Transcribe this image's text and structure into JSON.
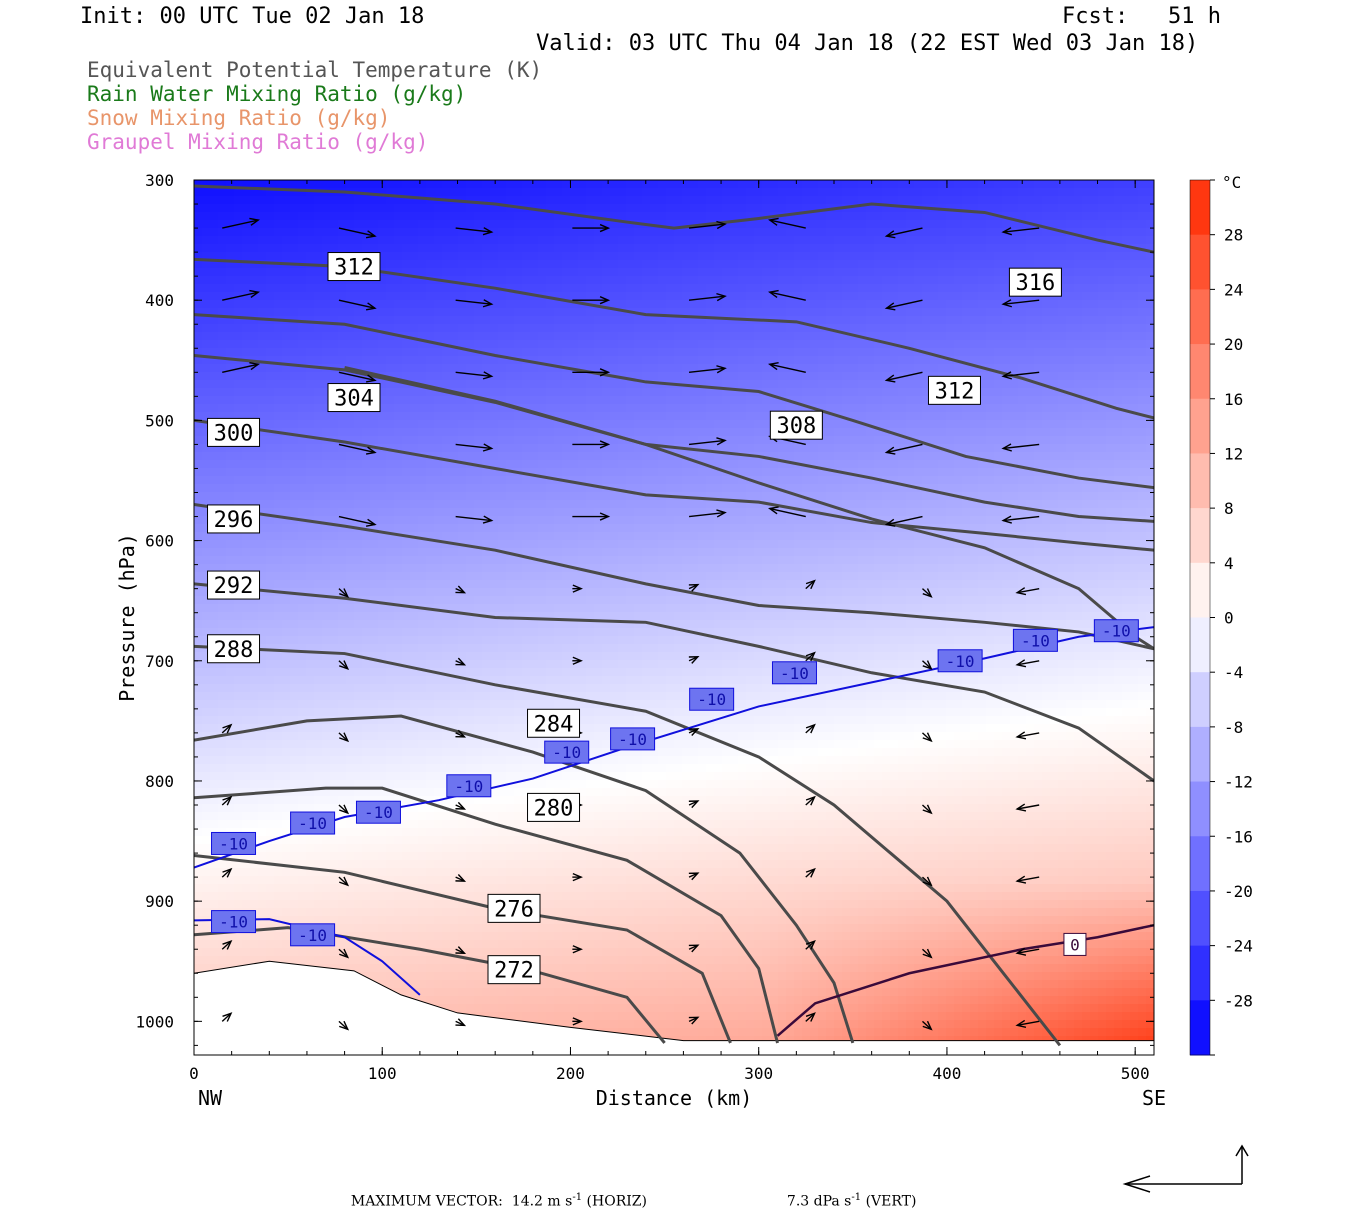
{
  "header": {
    "init": "Init: 00 UTC Tue 02 Jan 18",
    "fcst": "Fcst:   51 h",
    "valid": "Valid: 03 UTC Thu 04 Jan 18 (22 EST Wed 03 Jan 18)"
  },
  "legend": [
    {
      "text": "Equivalent Potential Temperature (K)",
      "color": "#555555"
    },
    {
      "text": "Rain Water Mixing Ratio (g/kg)",
      "color": "#1a7a1a"
    },
    {
      "text": "Snow Mixing Ratio (g/kg)",
      "color": "#e8956a"
    },
    {
      "text": "Graupel Mixing Ratio (g/kg)",
      "color": "#e07ad6"
    }
  ],
  "footer": {
    "max_vector_label": "MAXIMUM VECTOR:",
    "horiz_value": "14.2",
    "horiz_unit": "m s",
    "horiz_exp": "-1",
    "horiz_tag": "(HORIZ)",
    "vert_value": "7.3",
    "vert_unit": "dPa s",
    "vert_exp": "-1",
    "vert_tag": "(VERT)"
  },
  "chart_data": {
    "type": "cross-section",
    "xlabel": "Distance (km)",
    "ylabel": "Pressure (hPa)",
    "xlim": [
      0,
      510
    ],
    "ylim": [
      1028,
      300
    ],
    "x_ticks": [
      0,
      100,
      200,
      300,
      400,
      500
    ],
    "y_ticks": [
      300,
      400,
      500,
      600,
      700,
      800,
      900,
      1000
    ],
    "x_end_labels": {
      "left": "NW",
      "right": "SE"
    },
    "colorbar": {
      "unit": "°C",
      "tick_labels": [
        "28",
        "24",
        "20",
        "16",
        "12",
        "8",
        "4",
        "0",
        "-4",
        "-8",
        "-12",
        "-16",
        "-20",
        "-24",
        "-28"
      ],
      "min": -32,
      "max": 32,
      "step": 4
    },
    "colors": {
      "cold": "#0000ff",
      "warm": "#ff2a00",
      "theta_e": "#4a4a4a",
      "isotherm_m10": "#1010dd",
      "isotherm_0": "#3a0a3a"
    },
    "theta_e_contours": [
      {
        "label": "316",
        "points": [
          [
            0,
            305
          ],
          [
            80,
            310
          ],
          [
            160,
            320
          ],
          [
            230,
            335
          ],
          [
            255,
            340
          ],
          [
            300,
            332
          ],
          [
            360,
            320
          ],
          [
            420,
            327
          ],
          [
            480,
            350
          ],
          [
            510,
            360
          ]
        ],
        "label_at": [
          447,
          385
        ]
      },
      {
        "label": "312",
        "points": [
          [
            0,
            366
          ],
          [
            80,
            372
          ],
          [
            160,
            390
          ],
          [
            240,
            412
          ],
          [
            320,
            418
          ],
          [
            380,
            440
          ],
          [
            440,
            465
          ],
          [
            490,
            490
          ],
          [
            510,
            498
          ]
        ],
        "label_at": [
          85,
          372
        ]
      },
      {
        "label": "312",
        "points": [
          [
            0,
            412
          ],
          [
            80,
            420
          ],
          [
            160,
            446
          ],
          [
            240,
            468
          ],
          [
            300,
            476
          ],
          [
            350,
            500
          ],
          [
            410,
            530
          ],
          [
            470,
            548
          ],
          [
            510,
            556
          ]
        ],
        "label_at": [
          404,
          475
        ]
      },
      {
        "label": "304",
        "points": [
          [
            0,
            446
          ],
          [
            80,
            458
          ],
          [
            160,
            485
          ],
          [
            240,
            520
          ],
          [
            300,
            530
          ],
          [
            360,
            548
          ],
          [
            420,
            568
          ],
          [
            470,
            580
          ],
          [
            510,
            584
          ]
        ],
        "label_at": [
          85,
          481
        ]
      },
      {
        "label": "308",
        "points": [
          [
            80,
            456
          ],
          [
            160,
            484
          ],
          [
            240,
            520
          ],
          [
            300,
            552
          ],
          [
            360,
            582
          ],
          [
            420,
            606
          ],
          [
            470,
            640
          ],
          [
            500,
            680
          ],
          [
            510,
            690
          ]
        ],
        "label_at": [
          320,
          504
        ]
      },
      {
        "label": "300",
        "points": [
          [
            0,
            500
          ],
          [
            80,
            518
          ],
          [
            160,
            540
          ],
          [
            240,
            562
          ],
          [
            300,
            568
          ],
          [
            360,
            585
          ],
          [
            420,
            594
          ],
          [
            470,
            602
          ],
          [
            510,
            608
          ]
        ],
        "label_at": [
          21,
          510
        ]
      },
      {
        "label": "296",
        "points": [
          [
            0,
            570
          ],
          [
            80,
            588
          ],
          [
            160,
            608
          ],
          [
            240,
            636
          ],
          [
            300,
            654
          ],
          [
            360,
            660
          ],
          [
            420,
            668
          ],
          [
            470,
            676
          ],
          [
            510,
            690
          ]
        ],
        "label_at": [
          21,
          582
        ]
      },
      {
        "label": "292",
        "points": [
          [
            0,
            636
          ],
          [
            80,
            648
          ],
          [
            160,
            664
          ],
          [
            240,
            668
          ],
          [
            300,
            688
          ],
          [
            360,
            710
          ],
          [
            420,
            726
          ],
          [
            470,
            756
          ],
          [
            510,
            800
          ]
        ],
        "label_at": [
          21,
          637
        ]
      },
      {
        "label": "288",
        "points": [
          [
            0,
            688
          ],
          [
            80,
            694
          ],
          [
            160,
            720
          ],
          [
            240,
            742
          ],
          [
            300,
            780
          ],
          [
            340,
            820
          ],
          [
            370,
            860
          ],
          [
            400,
            900
          ],
          [
            430,
            960
          ],
          [
            460,
            1020
          ]
        ],
        "label_at": [
          21,
          690
        ]
      },
      {
        "label": "284",
        "points": [
          [
            0,
            766
          ],
          [
            60,
            750
          ],
          [
            110,
            746
          ],
          [
            180,
            776
          ],
          [
            240,
            808
          ],
          [
            290,
            860
          ],
          [
            320,
            920
          ],
          [
            340,
            968
          ],
          [
            350,
            1018
          ]
        ],
        "label_at": [
          191,
          752
        ]
      },
      {
        "label": "280",
        "points": [
          [
            0,
            814
          ],
          [
            70,
            806
          ],
          [
            100,
            806
          ],
          [
            160,
            836
          ],
          [
            230,
            866
          ],
          [
            280,
            912
          ],
          [
            300,
            956
          ],
          [
            310,
            1018
          ]
        ],
        "label_at": [
          191,
          822
        ]
      },
      {
        "label": "276",
        "points": [
          [
            0,
            862
          ],
          [
            80,
            876
          ],
          [
            160,
            906
          ],
          [
            230,
            924
          ],
          [
            270,
            960
          ],
          [
            285,
            1018
          ]
        ],
        "label_at": [
          170,
          906
        ]
      },
      {
        "label": "272",
        "points": [
          [
            0,
            928
          ],
          [
            50,
            922
          ],
          [
            120,
            940
          ],
          [
            180,
            958
          ],
          [
            230,
            980
          ],
          [
            250,
            1018
          ]
        ],
        "label_at": [
          170,
          957
        ]
      }
    ],
    "isotherm_minus10": {
      "label": "-10",
      "points": [
        [
          0,
          872
        ],
        [
          40,
          850
        ],
        [
          80,
          830
        ],
        [
          130,
          816
        ],
        [
          180,
          798
        ],
        [
          230,
          772
        ],
        [
          300,
          738
        ],
        [
          360,
          718
        ],
        [
          420,
          698
        ],
        [
          470,
          680
        ],
        [
          510,
          672
        ]
      ],
      "labels_at": [
        [
          21,
          852
        ],
        [
          63,
          835
        ],
        [
          98,
          826
        ],
        [
          146,
          804
        ],
        [
          198,
          776
        ],
        [
          233,
          765
        ],
        [
          275,
          732
        ],
        [
          319,
          710
        ],
        [
          407,
          700
        ],
        [
          447,
          683
        ],
        [
          490,
          675
        ]
      ]
    },
    "isotherm_minus10_low": {
      "label": "-10",
      "points": [
        [
          0,
          916
        ],
        [
          40,
          915
        ],
        [
          80,
          930
        ],
        [
          100,
          950
        ],
        [
          120,
          978
        ]
      ],
      "labels_at": [
        [
          21,
          917
        ],
        [
          63,
          928
        ]
      ]
    },
    "isotherm_zero": {
      "label": "0",
      "points": [
        [
          310,
          1012
        ],
        [
          330,
          985
        ],
        [
          380,
          960
        ],
        [
          440,
          940
        ],
        [
          480,
          930
        ],
        [
          510,
          920
        ]
      ],
      "labels_at": [
        [
          468,
          936
        ]
      ]
    },
    "terrain_pressure": [
      [
        0,
        960
      ],
      [
        40,
        950
      ],
      [
        85,
        958
      ],
      [
        110,
        978
      ],
      [
        140,
        993
      ],
      [
        200,
        1005
      ],
      [
        260,
        1016
      ],
      [
        510,
        1016
      ]
    ]
  }
}
